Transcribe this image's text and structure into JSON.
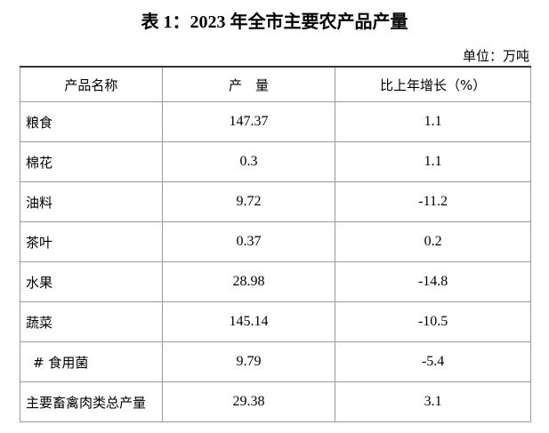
{
  "header": {
    "title": "表 1：2023 年全市主要农产品产量",
    "unit": "单位：万吨"
  },
  "table": {
    "columns": [
      "产品名称",
      "产　量",
      "比上年增长（%）"
    ],
    "rows": [
      [
        "粮食",
        "147.37",
        "1.1"
      ],
      [
        "棉花",
        "0.3",
        "1.1"
      ],
      [
        "油料",
        "9.72",
        "-11.2"
      ],
      [
        "茶叶",
        "0.37",
        "0.2"
      ],
      [
        "水果",
        "28.98",
        "-14.8"
      ],
      [
        "蔬菜",
        "145.14",
        "-10.5"
      ],
      [
        "# 食用菌",
        "9.79",
        "-5.4"
      ],
      [
        "主要畜禽肉类总产量",
        "29.38",
        "3.1"
      ]
    ]
  }
}
